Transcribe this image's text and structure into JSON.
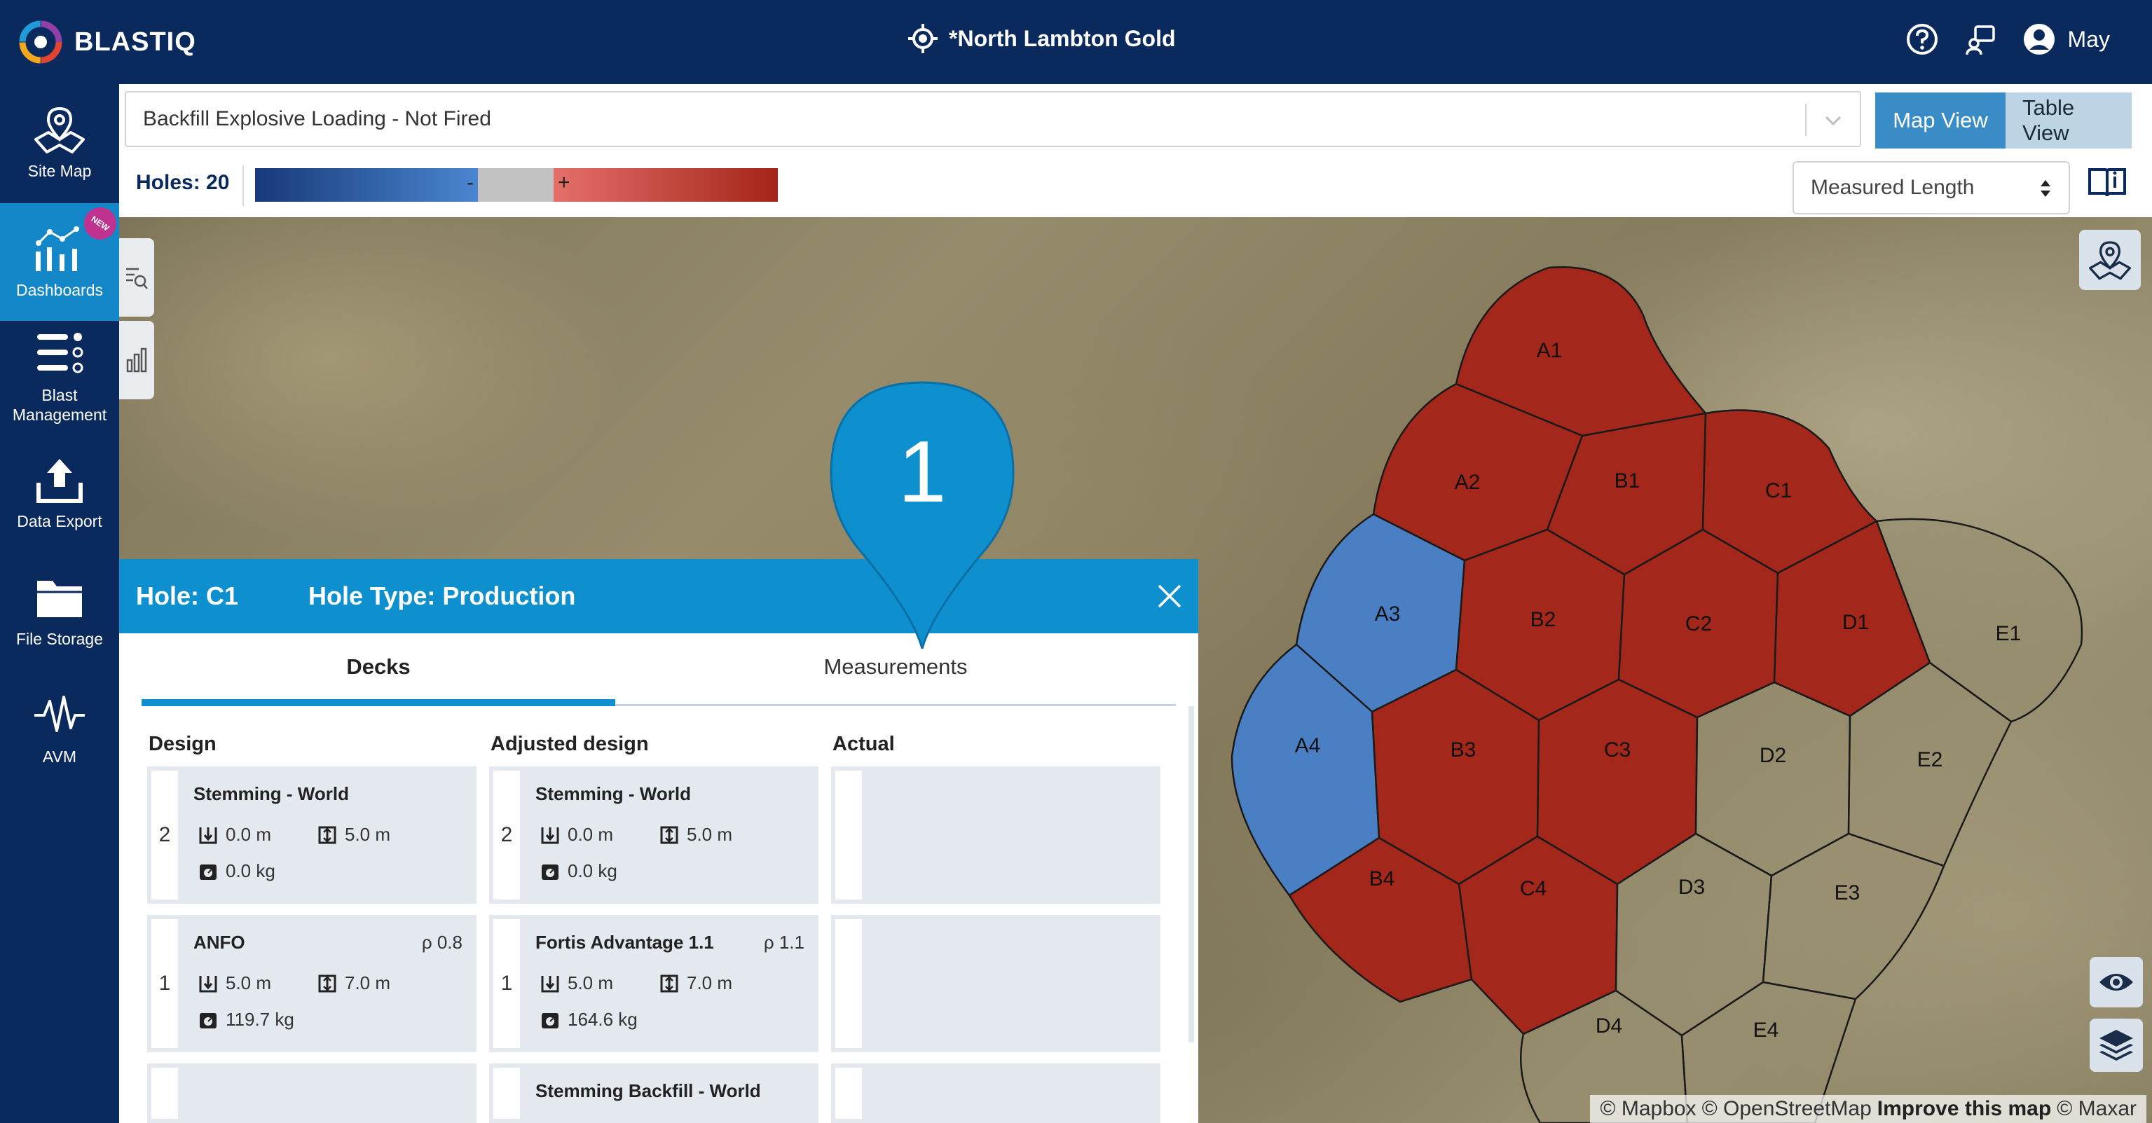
{
  "app": {
    "brand": "BLASTIQ",
    "site_name": "*North Lambton Gold",
    "user_name": "May"
  },
  "sidebar": {
    "items": [
      {
        "label": "Site Map",
        "icon": "site-map-icon"
      },
      {
        "label": "Dashboards",
        "icon": "dashboards-icon",
        "badge": "NEW"
      },
      {
        "label": "Blast Management",
        "icon": "blast-management-icon"
      },
      {
        "label": "Data Export",
        "icon": "data-export-icon"
      },
      {
        "label": "File Storage",
        "icon": "file-storage-icon"
      },
      {
        "label": "AVM",
        "icon": "avm-icon"
      }
    ]
  },
  "filter": {
    "selected_view": "Backfill Explosive Loading - Not Fired",
    "holes_label": "Holes: 20",
    "legend_neg": "-",
    "legend_pos": "+",
    "metric": "Measured Length"
  },
  "view_toggle": {
    "map": "Map View",
    "table": "Table View",
    "active": "Map View"
  },
  "colors": {
    "header_bg": "#0a2a5e",
    "accent": "#0e90cf",
    "hole_red": "#a3271a",
    "hole_blue": "#4a7fc4"
  },
  "map": {
    "holes": [
      {
        "id": "A1",
        "status": "over"
      },
      {
        "id": "A2",
        "status": "over"
      },
      {
        "id": "A3",
        "status": "under"
      },
      {
        "id": "A4",
        "status": "under"
      },
      {
        "id": "B1",
        "status": "over"
      },
      {
        "id": "B2",
        "status": "over"
      },
      {
        "id": "B3",
        "status": "over"
      },
      {
        "id": "B4",
        "status": "over"
      },
      {
        "id": "C1",
        "status": "over"
      },
      {
        "id": "C2",
        "status": "over"
      },
      {
        "id": "C3",
        "status": "over"
      },
      {
        "id": "C4",
        "status": "over"
      },
      {
        "id": "D1",
        "status": "over"
      },
      {
        "id": "D2",
        "status": "none"
      },
      {
        "id": "D3",
        "status": "none"
      },
      {
        "id": "D4",
        "status": "none"
      },
      {
        "id": "E1",
        "status": "none"
      },
      {
        "id": "E2",
        "status": "none"
      },
      {
        "id": "E3",
        "status": "none"
      },
      {
        "id": "E4",
        "status": "none"
      }
    ],
    "marker_label": "1",
    "attribution": {
      "mapbox": "© Mapbox",
      "osm": "© OpenStreetMap",
      "improve": "Improve this map",
      "maxar": "© Maxar"
    }
  },
  "panel": {
    "hole": "Hole: C1",
    "hole_type": "Hole Type: Production",
    "tabs": [
      {
        "label": "Decks"
      },
      {
        "label": "Measurements"
      }
    ],
    "active_tab": "Decks",
    "columns": {
      "design": "Design",
      "adjusted": "Adjusted design",
      "actual": "Actual"
    },
    "design": [
      {
        "num": "2",
        "title": "Stemming - World",
        "rho": "",
        "top": "0.0 m",
        "length": "5.0 m",
        "mass": "0.0 kg"
      },
      {
        "num": "1",
        "title": "ANFO",
        "rho": "ρ 0.8",
        "top": "5.0 m",
        "length": "7.0 m",
        "mass": "119.7 kg"
      }
    ],
    "adjusted": [
      {
        "num": "2",
        "title": "Stemming - World",
        "rho": "",
        "top": "0.0 m",
        "length": "5.0 m",
        "mass": "0.0 kg"
      },
      {
        "num": "1",
        "title": "Fortis Advantage 1.1",
        "rho": "ρ 1.1",
        "top": "5.0 m",
        "length": "7.0 m",
        "mass": "164.6 kg"
      },
      {
        "title": "Stemming Backfill - World"
      }
    ]
  }
}
